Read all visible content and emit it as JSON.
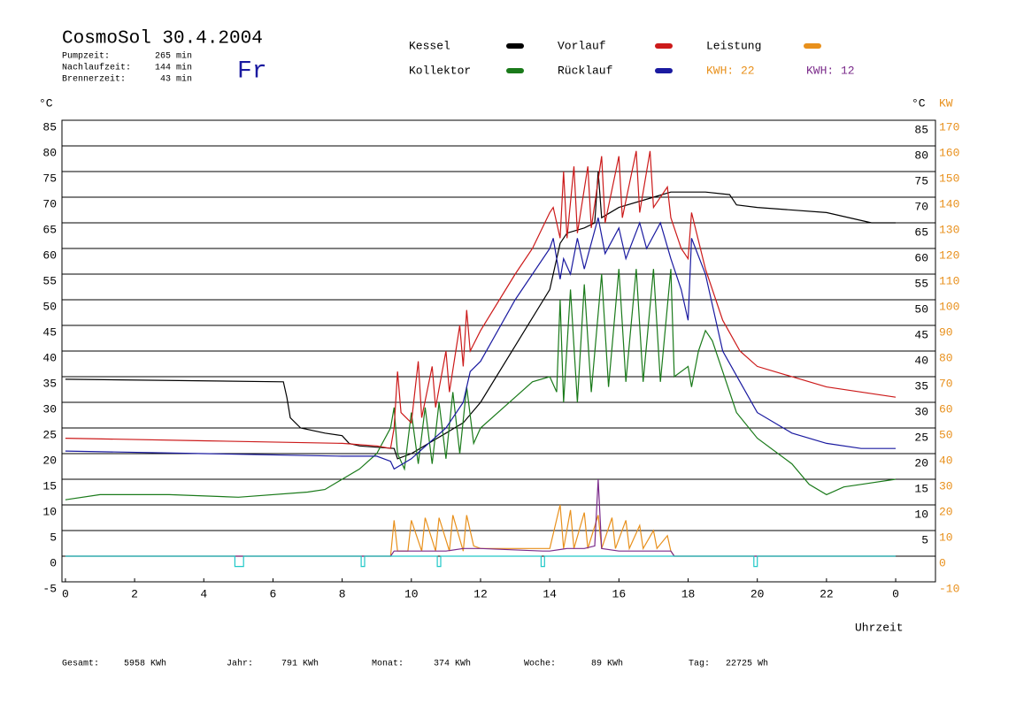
{
  "chart_data": {
    "type": "line",
    "title": "CosmoSol 30.4.2004",
    "weekday": "Fr",
    "stats": [
      {
        "label": "Pumpzeit:",
        "value": "265 min"
      },
      {
        "label": "Nachlaufzeit:",
        "value": "144 min"
      },
      {
        "label": "Brennerzeit:",
        "value": "43 min"
      }
    ],
    "energy_labels": [
      {
        "text": "KWH: 22",
        "color": "#e8901c"
      },
      {
        "text": "KWH: 12",
        "color": "#7a2a8a"
      }
    ],
    "y_unit": "°C",
    "y2_unit": "KW",
    "x_label": "Uhrzeit",
    "footer": [
      "Gesamt:",
      "5958 KWh",
      "Jahr:",
      "791 KWh",
      "Monat:",
      "374 KWh",
      "Woche:",
      "89 KWh",
      "Tag:",
      "22725 Wh"
    ],
    "xlim": [
      -0.1,
      25.15
    ],
    "xticks": [
      0,
      2,
      4,
      6,
      8,
      10,
      12,
      14,
      16,
      18,
      20,
      22,
      {
        "value": 24,
        "label": "0"
      }
    ],
    "ylim": [
      -5,
      85
    ],
    "yticks": [
      -5,
      0,
      5,
      10,
      15,
      20,
      25,
      30,
      35,
      40,
      45,
      50,
      55,
      60,
      65,
      70,
      75,
      80,
      85
    ],
    "y_right_ticks": [
      5,
      10,
      15,
      20,
      25,
      30,
      35,
      40,
      45,
      50,
      55,
      60,
      65,
      70,
      75,
      80,
      85
    ],
    "y2lim": [
      -10,
      170
    ],
    "y2ticks": [
      -10,
      0,
      10,
      20,
      30,
      40,
      50,
      60,
      70,
      80,
      90,
      100,
      110,
      120,
      130,
      140,
      150,
      160,
      170
    ],
    "grid": true,
    "series": [
      {
        "name": "Kessel",
        "color": "#000000",
        "x": [
          0,
          6.3,
          6.4,
          6.5,
          6.8,
          7.5,
          8,
          8.2,
          8.5,
          9.5,
          9.6,
          10,
          10.5,
          11,
          11.5,
          12,
          14,
          14.3,
          14.5,
          15,
          15.3,
          15.4,
          15.5,
          16,
          17,
          17.5,
          18.5,
          19.2,
          19.4,
          20,
          22,
          23.3,
          24
        ],
        "values": [
          34.5,
          34,
          31,
          27,
          25,
          24,
          23.5,
          22,
          21.5,
          21,
          19,
          20,
          22,
          24,
          26,
          30,
          52,
          61,
          63,
          64,
          65,
          75,
          66,
          68,
          70,
          71,
          71,
          70.5,
          68.5,
          68,
          67,
          65,
          65
        ]
      },
      {
        "name": "Kollektor",
        "color": "#1a7a1a",
        "x": [
          0,
          1,
          3,
          5,
          7,
          7.5,
          8,
          8.5,
          9,
          9.4,
          9.5,
          9.6,
          9.8,
          10,
          10.2,
          10.4,
          10.6,
          10.8,
          11,
          11.2,
          11.4,
          11.6,
          11.8,
          12,
          13,
          13.5,
          14,
          14.2,
          14.3,
          14.4,
          14.6,
          14.8,
          15,
          15.2,
          15.5,
          15.7,
          16,
          16.2,
          16.5,
          16.7,
          17,
          17.2,
          17.5,
          17.6,
          18,
          18.1,
          18.3,
          18.5,
          18.7,
          19,
          19.4,
          20,
          21,
          21.5,
          22,
          22.5,
          23,
          24
        ],
        "values": [
          11,
          12,
          12,
          11.5,
          12.5,
          13,
          15,
          17,
          20,
          25,
          29,
          20,
          17,
          28,
          18,
          29,
          18,
          30,
          19,
          32,
          20,
          33,
          22,
          25,
          31,
          34,
          35,
          32,
          50,
          30,
          52,
          30,
          53,
          32,
          55,
          33,
          56,
          34,
          56,
          34,
          56,
          34,
          56,
          35,
          37,
          33,
          40,
          44,
          42,
          36,
          28,
          23,
          18,
          14,
          12,
          13.5,
          14,
          15
        ]
      },
      {
        "name": "Vorlauf",
        "color": "#cc1a1a",
        "x": [
          0,
          4,
          8,
          9,
          9.4,
          9.5,
          9.6,
          9.7,
          10,
          10.2,
          10.3,
          10.6,
          10.7,
          11,
          11.1,
          11.4,
          11.5,
          11.6,
          11.7,
          12,
          13,
          13.5,
          14,
          14.1,
          14.3,
          14.4,
          14.5,
          14.7,
          14.8,
          15.1,
          15.2,
          15.5,
          15.6,
          16,
          16.1,
          16.5,
          16.6,
          16.9,
          17,
          17.4,
          17.5,
          17.8,
          18,
          18.1,
          18.5,
          19,
          19.5,
          20,
          22,
          24
        ],
        "values": [
          23,
          22.5,
          22,
          21.5,
          21,
          25,
          36,
          28,
          26,
          38,
          27,
          37,
          29,
          40,
          32,
          45,
          37,
          48,
          40,
          44,
          55,
          60,
          67,
          68,
          62,
          75,
          62,
          76,
          63,
          76,
          64,
          78,
          65,
          78,
          66,
          79,
          67,
          79,
          68,
          72,
          66,
          60,
          58,
          67,
          56,
          46,
          40,
          37,
          33,
          31
        ]
      },
      {
        "name": "Rücklauf",
        "color": "#1a1aa0",
        "x": [
          0,
          4,
          8,
          9,
          9.4,
          9.5,
          10,
          10.5,
          11,
          11.5,
          11.7,
          12,
          13,
          14,
          14.1,
          14.3,
          14.4,
          14.6,
          14.8,
          15,
          15.4,
          15.6,
          16,
          16.2,
          16.6,
          16.8,
          17.2,
          17.5,
          17.8,
          18,
          18.1,
          18.5,
          19,
          19.5,
          20,
          21,
          22,
          23,
          24
        ],
        "values": [
          20.5,
          20,
          19.5,
          19.5,
          18.5,
          17,
          19,
          22,
          25,
          30,
          36,
          38,
          50,
          60,
          62,
          54,
          58,
          55,
          62,
          56,
          66,
          59,
          64,
          58,
          65,
          60,
          65,
          58,
          52,
          46,
          62,
          55,
          40,
          34,
          28,
          24,
          22,
          21,
          21
        ]
      },
      {
        "name": "Leistung",
        "color": "#e8901c",
        "axis": "y2",
        "x": [
          0,
          9.4,
          9.5,
          9.6,
          9.9,
          10,
          10.3,
          10.4,
          10.7,
          10.8,
          11.1,
          11.2,
          11.5,
          11.6,
          11.8,
          12,
          13.8,
          14,
          14.3,
          14.4,
          14.6,
          14.7,
          15,
          15.1,
          15.4,
          15.5,
          15.8,
          15.9,
          16.2,
          16.3,
          16.6,
          16.7,
          17,
          17.1,
          17.4,
          17.5,
          17.6,
          24
        ],
        "values": [
          0,
          0,
          14,
          2,
          2,
          14,
          2,
          15,
          2,
          15,
          2,
          16,
          2,
          16,
          4,
          3,
          3,
          3,
          20,
          3,
          18,
          3,
          17,
          3,
          16,
          3,
          15,
          3,
          14,
          3,
          12,
          3,
          10,
          3,
          8,
          2,
          0,
          0
        ]
      },
      {
        "color": "#7a2a8a",
        "axis": "y2",
        "x": [
          0,
          9.4,
          9.5,
          10,
          10.5,
          11,
          11.5,
          12,
          13.8,
          14,
          14.5,
          15,
          15.3,
          15.4,
          15.5,
          16,
          16.5,
          17,
          17.5,
          17.6,
          24
        ],
        "values": [
          0,
          0,
          2,
          2,
          2,
          2,
          3,
          3,
          2,
          2,
          3,
          3,
          4,
          30,
          3,
          2,
          2,
          2,
          2,
          0,
          0
        ]
      },
      {
        "color": "#20c8c8",
        "x": [
          0,
          4.9,
          4.9,
          5.15,
          5.15,
          8.55,
          8.55,
          8.65,
          8.65,
          10.75,
          10.75,
          10.85,
          10.85,
          13.75,
          13.75,
          13.85,
          13.85,
          19.9,
          19.9,
          20,
          20,
          24
        ],
        "values": [
          0,
          0,
          -2,
          -2,
          0,
          0,
          -2,
          -2,
          0,
          0,
          -2,
          -2,
          0,
          0,
          -2,
          -2,
          0,
          0,
          -2,
          -2,
          0,
          0
        ]
      }
    ]
  }
}
